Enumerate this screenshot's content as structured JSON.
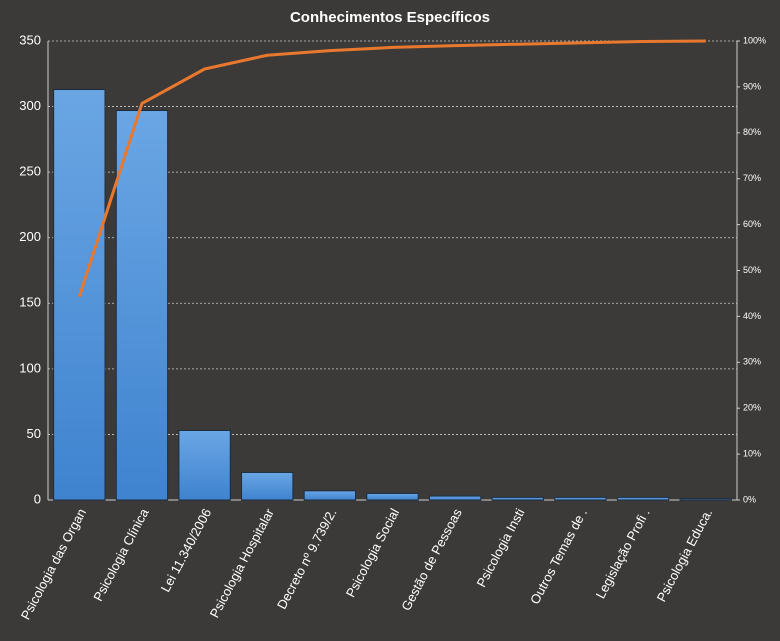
{
  "chart_data": {
    "type": "pareto",
    "title": "Conhecimentos Específicos",
    "categories": [
      "Psicologia das Organ",
      "Psicologia Clínica",
      "Lei 11.340/2006",
      "Psicologia Hospitalar",
      "Decreto nº 9.739/2.",
      "Psicologia Social",
      "Gestão de Pessoas",
      "Psicologia Insti",
      "Outros Temas de .",
      "Legislação Profi .",
      "Psicologia Educa."
    ],
    "series": [
      {
        "type": "bar",
        "color": "#4a8fd8",
        "values": [
          313,
          297,
          53,
          21,
          7,
          5,
          3,
          2,
          2,
          2,
          1
        ]
      },
      {
        "type": "line",
        "axis": "y2",
        "color": "#e8782e",
        "values": [
          44.3,
          86.4,
          93.9,
          96.9,
          97.9,
          98.6,
          99.0,
          99.3,
          99.6,
          99.9,
          100
        ]
      }
    ],
    "ylim": [
      0,
      350
    ],
    "yticks": [
      0,
      50,
      100,
      150,
      200,
      250,
      300,
      350
    ],
    "y2lim": [
      0,
      100
    ],
    "y2ticks": [
      {
        "value": 0,
        "label": "0%"
      },
      {
        "value": 10,
        "label": "10%"
      },
      {
        "value": 20,
        "label": "20%"
      },
      {
        "value": 30,
        "label": "30%"
      },
      {
        "value": 40,
        "label": "40%"
      },
      {
        "value": 50,
        "label": "50%"
      },
      {
        "value": 60,
        "label": "60%"
      },
      {
        "value": 70,
        "label": "70%"
      },
      {
        "value": 80,
        "label": "80%"
      },
      {
        "value": 90,
        "label": "90%"
      },
      {
        "value": 100,
        "label": "100%"
      }
    ],
    "grid": true
  }
}
